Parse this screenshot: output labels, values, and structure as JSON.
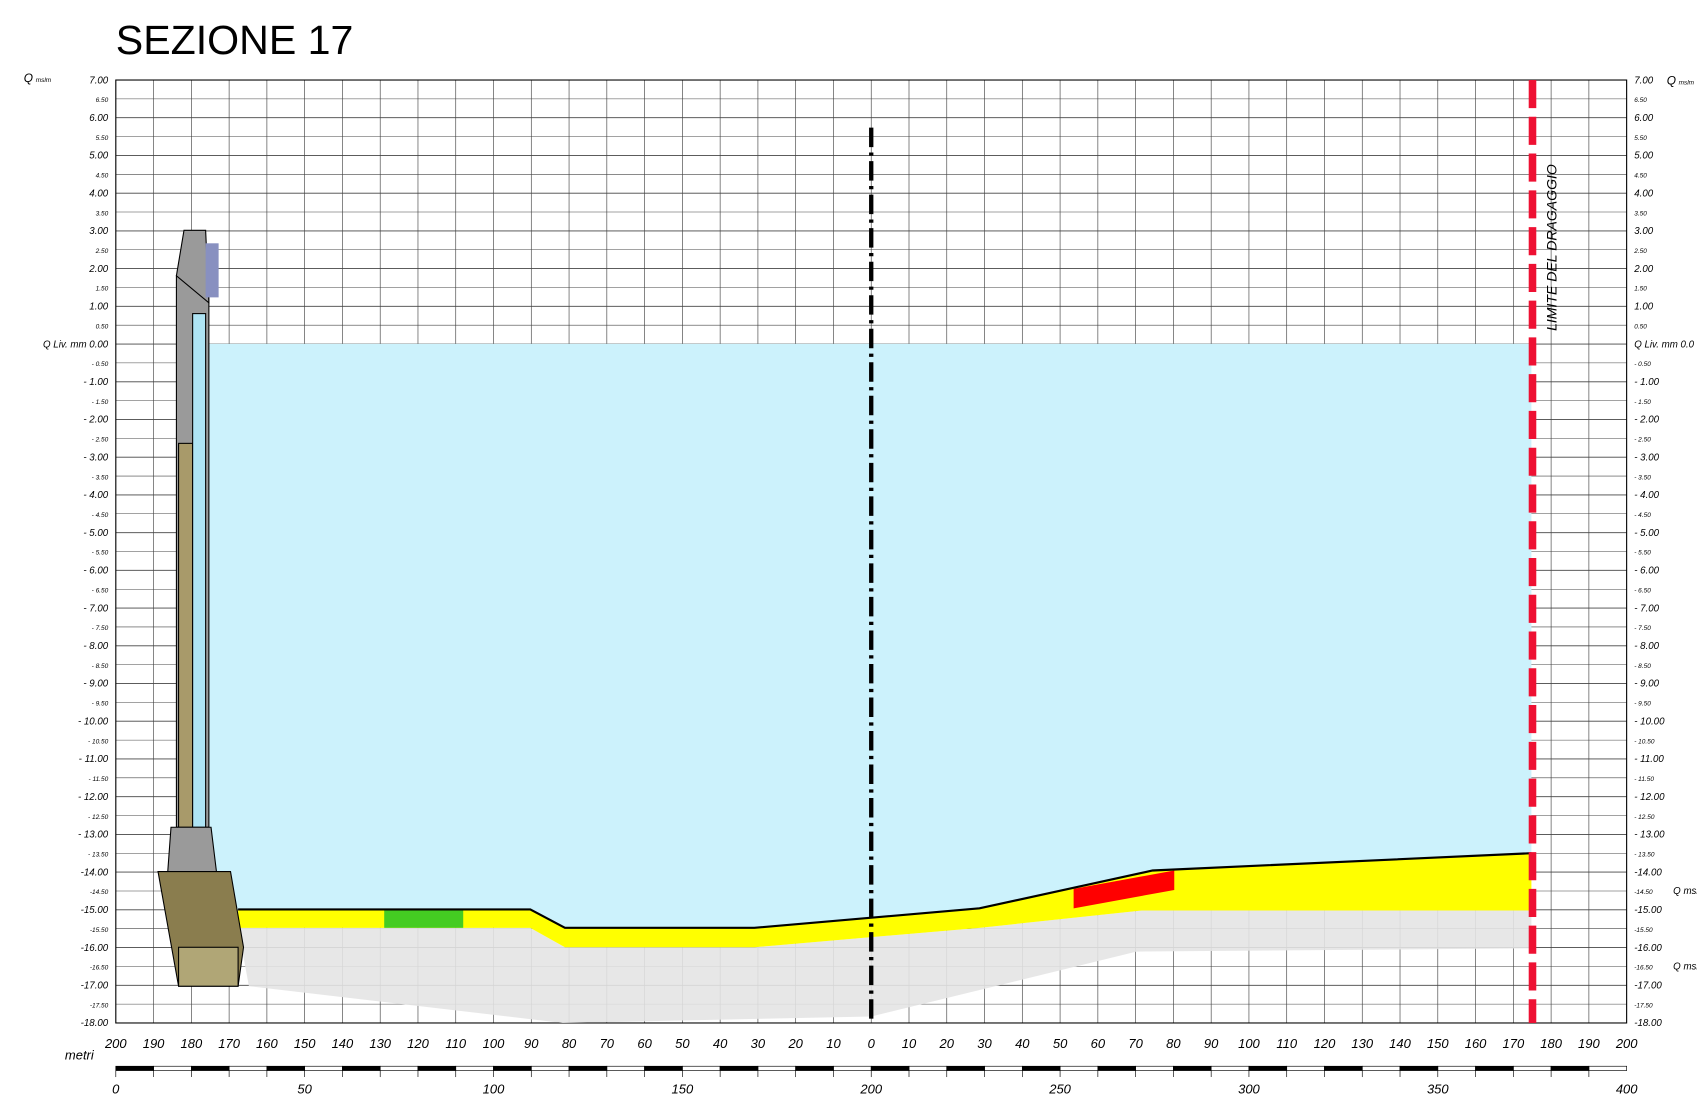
{
  "title": "SEZIONE 17",
  "left_axis": {
    "header": [
      "Q",
      "mslm"
    ],
    "labels": [
      "7.00",
      "6.50",
      "6.00",
      "5.50",
      "5.00",
      "4.50",
      "4.00",
      "3.50",
      "3.00",
      "2.50",
      "2.00",
      "1.50",
      "1.00",
      "0.50",
      "Q Liv. mm 0.00",
      "- 0.50",
      "- 1.00",
      "- 1.50",
      "- 2.00",
      "- 2.50",
      "- 3.00",
      "- 3.50",
      "- 4.00",
      "- 4.50",
      "- 5.00",
      "- 5.50",
      "- 6.00",
      "- 6.50",
      "- 7.00",
      "- 7.50",
      "- 8.00",
      "- 8.50",
      "- 9.00",
      "- 9.50",
      "- 10.00",
      "- 10.50",
      "- 11.00",
      "- 11.50",
      "- 12.00",
      "- 12.50",
      "- 13.00",
      "- 13.50",
      "-14.00",
      "-14.50",
      "-15.00",
      "-15.50",
      "-16.00",
      "-16.50",
      "-17.00",
      "-17.50",
      "-18.00"
    ]
  },
  "right_axis": {
    "header": [
      "Q",
      "mslm"
    ],
    "labels": [
      "7.00",
      "6.50",
      "6.00",
      "5.50",
      "5.00",
      "4.50",
      "4.00",
      "3.50",
      "3.00",
      "2.50",
      "2.00",
      "1.50",
      "1.00",
      "0.50",
      "Q Liv. mm 0.0",
      "- 0.50",
      "- 1.00",
      "- 1.50",
      "- 2.00",
      "- 2.50",
      "- 3.00",
      "- 3.50",
      "- 4.00",
      "- 4.50",
      "- 5.00",
      "- 5.50",
      "- 6.00",
      "- 6.50",
      "- 7.00",
      "- 7.50",
      "- 8.00",
      "- 8.50",
      "- 9.00",
      "- 9.50",
      "- 10.00",
      "- 10.50",
      "- 11.00",
      "- 11.50",
      "- 12.00",
      "- 12.50",
      "- 13.00",
      "- 13.50",
      "-14.00",
      "-14.50",
      "-15.00",
      "-15.50",
      "-16.00",
      "-16.50",
      "-17.00",
      "-17.50",
      "-18.00"
    ],
    "notes": [
      "Q msl",
      "Q msl"
    ]
  },
  "x_axis": {
    "unit": "metri",
    "labels": [
      "200",
      "190",
      "180",
      "170",
      "160",
      "150",
      "140",
      "130",
      "120",
      "110",
      "100",
      "90",
      "80",
      "70",
      "60",
      "50",
      "40",
      "30",
      "20",
      "10",
      "0",
      "10",
      "20",
      "30",
      "40",
      "50",
      "60",
      "70",
      "80",
      "90",
      "100",
      "110",
      "120",
      "130",
      "140",
      "150",
      "160",
      "170",
      "180",
      "190",
      "200"
    ]
  },
  "scale_bar": {
    "labels": [
      "0",
      "50",
      "100",
      "150",
      "200",
      "250",
      "300",
      "350",
      "400"
    ]
  },
  "annotation": "LIMITE DEL DRAGAGGIO"
}
